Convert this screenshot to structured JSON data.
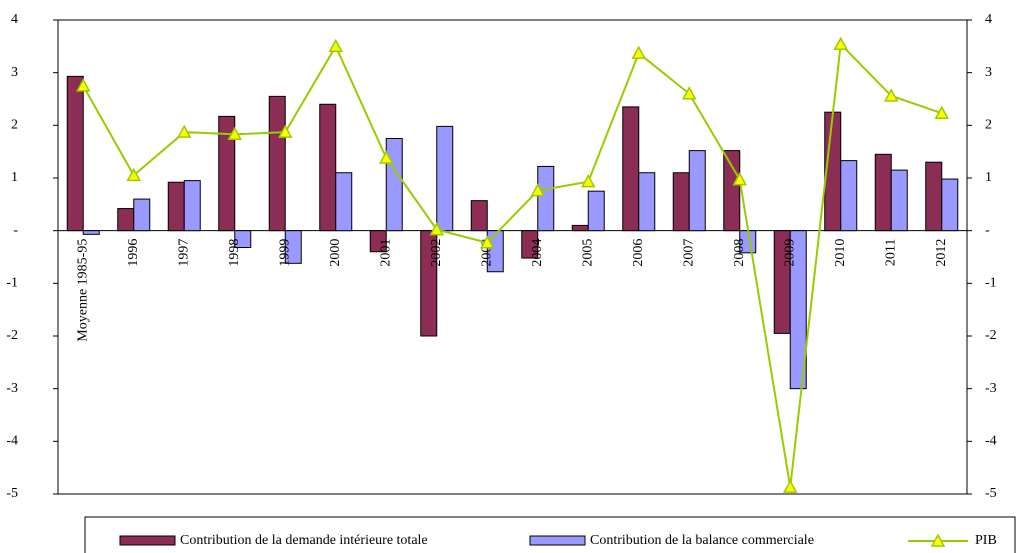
{
  "chart_data": {
    "type": "bar",
    "categories": [
      "Moyenne 1985-95",
      "1996",
      "1997",
      "1998",
      "1999",
      "2000",
      "2001",
      "2002",
      "2003",
      "2004",
      "2005",
      "2006",
      "2007",
      "2008",
      "2009",
      "2010",
      "2011",
      "2012"
    ],
    "series": [
      {
        "name": "Contribution de la demande intérieure totale",
        "color": "#8b2d55",
        "values": [
          2.93,
          0.42,
          0.92,
          2.17,
          2.55,
          2.4,
          -0.4,
          -2.0,
          0.57,
          -0.52,
          0.1,
          2.35,
          1.1,
          1.52,
          -1.95,
          2.25,
          1.45,
          1.3
        ]
      },
      {
        "name": "Contribution de la balance commerciale",
        "color": "#9999ff",
        "values": [
          -0.07,
          0.6,
          0.95,
          -0.32,
          -0.62,
          1.1,
          1.75,
          1.98,
          -0.78,
          1.22,
          0.75,
          1.1,
          1.52,
          -0.42,
          -3.0,
          1.33,
          1.15,
          0.98
        ]
      },
      {
        "name": "PIB",
        "type": "line",
        "axis": "y2",
        "color": "#99cc00",
        "marker_color": "#ffff00",
        "values": [
          2.75,
          1.05,
          1.87,
          1.83,
          1.87,
          3.5,
          1.38,
          0.02,
          -0.23,
          0.76,
          0.93,
          3.37,
          2.6,
          0.97,
          -4.87,
          3.54,
          2.56,
          2.23
        ]
      }
    ],
    "ylim": [
      -5,
      4
    ],
    "yticks": [
      -5,
      -4,
      -3,
      -2,
      -1,
      {
        "value": 0,
        "label": "-"
      },
      1,
      2,
      3,
      4
    ],
    "y2lim": [
      -5,
      4
    ],
    "y2ticks": [
      -5,
      -4,
      -3,
      -2,
      -1,
      {
        "value": 0,
        "label": "-"
      },
      1,
      2,
      3,
      4
    ],
    "grid": false,
    "legend": "bottom"
  }
}
